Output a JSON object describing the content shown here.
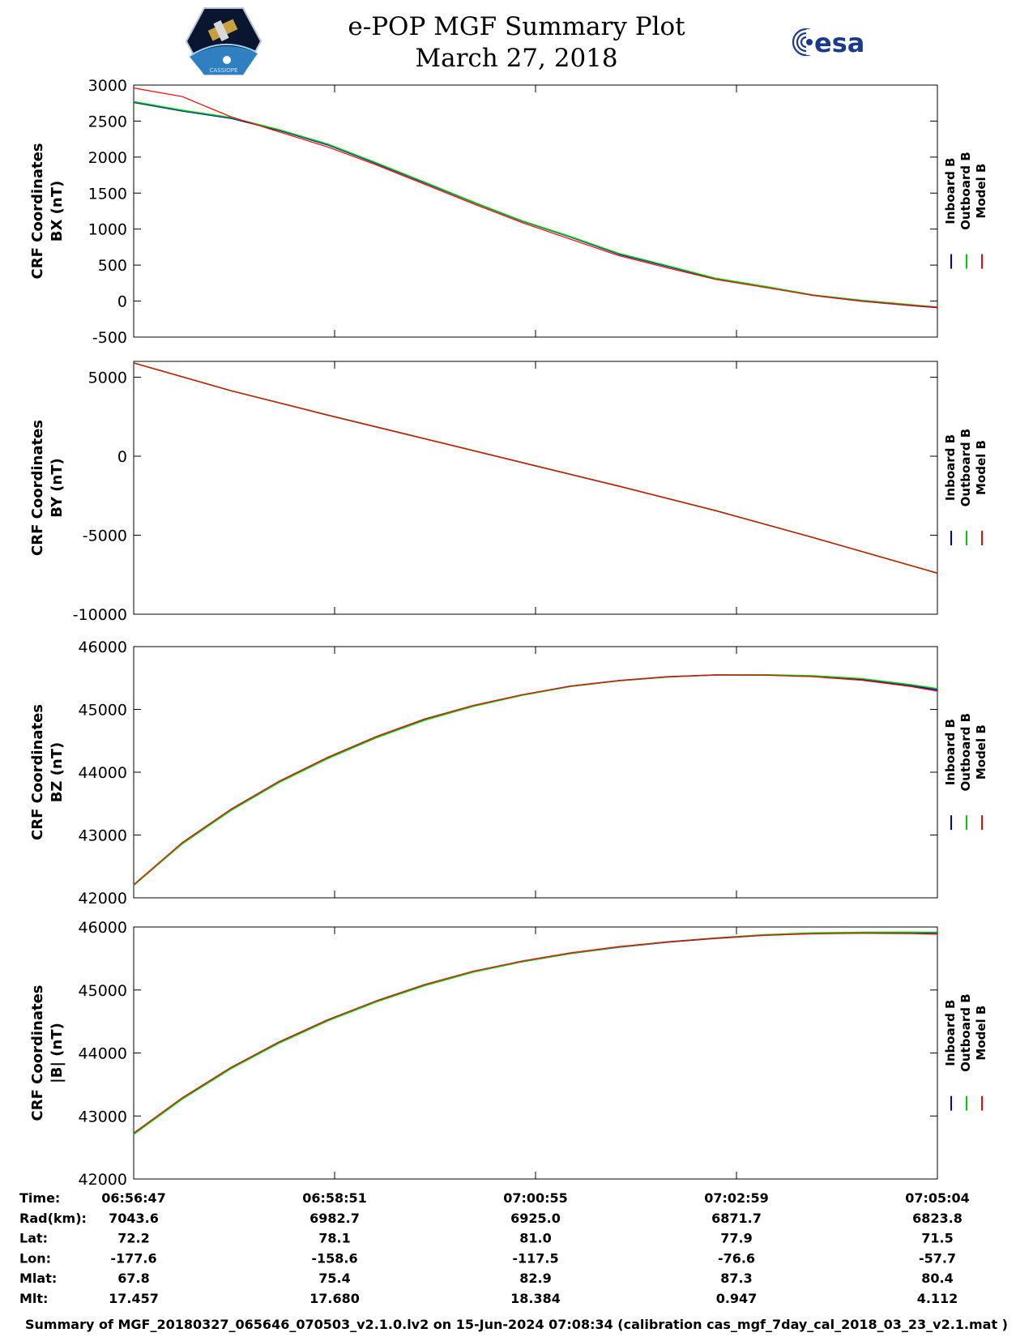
{
  "header": {
    "title": "e-POP MGF Summary Plot",
    "date": "March 27, 2018",
    "right_logo_text": "esa",
    "left_logo_caption": "CASSIOPE"
  },
  "colors": {
    "inboard": "#0000cc",
    "outboard": "#00cc00",
    "model": "#ff0000",
    "overlap": "#8a5a00"
  },
  "legend_labels": [
    "Inboard B",
    "Outboard B",
    "Model B"
  ],
  "chart_data": [
    {
      "type": "line",
      "ylabel": [
        "CRF Coordinates",
        "BX (nT)"
      ],
      "ylim": [
        -500,
        3000
      ],
      "yticks": [
        3000,
        2500,
        2000,
        1500,
        1000,
        500,
        0,
        -500
      ],
      "xlim_minutes": [
        0,
        8.28
      ],
      "x_minutes": [
        0,
        0.5,
        1,
        1.5,
        2,
        2.5,
        3,
        3.5,
        4,
        4.5,
        5,
        5.5,
        6,
        6.5,
        7,
        7.5,
        8,
        8.28
      ],
      "series": [
        {
          "name": "Inboard B",
          "values": [
            2760,
            2640,
            2540,
            2370,
            2170,
            1910,
            1640,
            1370,
            1110,
            890,
            650,
            480,
            310,
            200,
            80,
            0,
            -60,
            -90
          ]
        },
        {
          "name": "Outboard B",
          "values": [
            2770,
            2650,
            2550,
            2380,
            2180,
            1920,
            1650,
            1375,
            1115,
            895,
            660,
            490,
            315,
            205,
            85,
            10,
            -50,
            -85
          ]
        },
        {
          "name": "Model B",
          "values": [
            2960,
            2840,
            2560,
            2350,
            2140,
            1890,
            1620,
            1350,
            1090,
            860,
            630,
            460,
            300,
            190,
            80,
            0,
            -60,
            -85
          ]
        }
      ],
      "legend": "right"
    },
    {
      "type": "line",
      "ylabel": [
        "CRF Coordinates",
        "BY (nT)"
      ],
      "ylim": [
        -10000,
        6000
      ],
      "yticks": [
        5000,
        0,
        -5000,
        -10000
      ],
      "xlim_minutes": [
        0,
        8.28
      ],
      "x_minutes": [
        0,
        1,
        2,
        3,
        4,
        5,
        6,
        7,
        8.28
      ],
      "series": [
        {
          "name": "Inboard B",
          "values": [
            5900,
            4150,
            2600,
            1100,
            -400,
            -1900,
            -3450,
            -5150,
            -7400
          ]
        },
        {
          "name": "Outboard B",
          "values": [
            5900,
            4150,
            2610,
            1110,
            -390,
            -1890,
            -3450,
            -5150,
            -7400
          ]
        },
        {
          "name": "Model B",
          "values": [
            5900,
            4150,
            2600,
            1100,
            -400,
            -1900,
            -3450,
            -5150,
            -7400
          ]
        }
      ],
      "legend": "right"
    },
    {
      "type": "line",
      "ylabel": [
        "CRF Coordinates",
        "BZ (nT)"
      ],
      "ylim": [
        42000,
        46000
      ],
      "yticks": [
        46000,
        45000,
        44000,
        43000,
        42000
      ],
      "xlim_minutes": [
        0,
        8.28
      ],
      "x_minutes": [
        0,
        0.5,
        1,
        1.5,
        2,
        2.5,
        3,
        3.5,
        4,
        4.5,
        5,
        5.5,
        6,
        6.5,
        7,
        7.5,
        8,
        8.28
      ],
      "series": [
        {
          "name": "Inboard B",
          "values": [
            42200,
            42870,
            43400,
            43850,
            44230,
            44560,
            44840,
            45060,
            45230,
            45370,
            45460,
            45520,
            45550,
            45550,
            45530,
            45480,
            45380,
            45310
          ]
        },
        {
          "name": "Outboard B",
          "values": [
            42200,
            42860,
            43390,
            43840,
            44220,
            44550,
            44830,
            45050,
            45225,
            45365,
            45455,
            45515,
            45548,
            45552,
            45535,
            45490,
            45395,
            45330
          ]
        },
        {
          "name": "Model B",
          "values": [
            42210,
            42880,
            43410,
            43860,
            44240,
            44570,
            44850,
            45065,
            45235,
            45372,
            45460,
            45520,
            45548,
            45545,
            45520,
            45465,
            45365,
            45290
          ]
        }
      ],
      "legend": "right"
    },
    {
      "type": "line",
      "ylabel": [
        "CRF Coordinates",
        "|B| (nT)"
      ],
      "ylim": [
        42000,
        46000
      ],
      "yticks": [
        46000,
        45000,
        44000,
        43000,
        42000
      ],
      "xlim_minutes": [
        0,
        8.28
      ],
      "x_minutes": [
        0,
        0.5,
        1,
        1.5,
        2,
        2.5,
        3,
        3.5,
        4,
        4.5,
        5,
        5.5,
        6,
        6.5,
        7,
        7.5,
        8,
        8.28
      ],
      "series": [
        {
          "name": "Inboard B",
          "values": [
            42720,
            43280,
            43760,
            44170,
            44520,
            44820,
            45080,
            45290,
            45450,
            45580,
            45680,
            45760,
            45820,
            45870,
            45900,
            45910,
            45910,
            45905
          ]
        },
        {
          "name": "Outboard B",
          "values": [
            42710,
            43270,
            43750,
            44160,
            44510,
            44812,
            45072,
            45285,
            45448,
            45580,
            45682,
            45764,
            45826,
            45876,
            45906,
            45916,
            45918,
            45915
          ]
        },
        {
          "name": "Model B",
          "values": [
            42730,
            43290,
            43770,
            44180,
            44530,
            44830,
            45090,
            45300,
            45460,
            45590,
            45690,
            45765,
            45822,
            45866,
            45892,
            45900,
            45895,
            45885
          ]
        }
      ],
      "legend": "right"
    }
  ],
  "table": {
    "row_labels": [
      "Time:",
      "Rad(km):",
      "Lat:",
      "Lon:",
      "Mlat:",
      "Mlt:"
    ],
    "columns": [
      [
        "06:56:47",
        "7043.6",
        "72.2",
        "-177.6",
        "67.8",
        "17.457"
      ],
      [
        "06:58:51",
        "6982.7",
        "78.1",
        "-158.6",
        "75.4",
        "17.680"
      ],
      [
        "07:00:55",
        "6925.0",
        "81.0",
        "-117.5",
        "82.9",
        "18.384"
      ],
      [
        "07:02:59",
        "6871.7",
        "77.9",
        "-76.6",
        "87.3",
        "0.947"
      ],
      [
        "07:05:04",
        "6823.8",
        "71.5",
        "-57.7",
        "80.4",
        "4.112"
      ]
    ]
  },
  "footer": "Summary of MGF_20180327_065646_070503_v2.1.0.lv2 on 15-Jun-2024 07:08:34 (calibration cas_mgf_7day_cal_2018_03_23_v2.1.mat )"
}
